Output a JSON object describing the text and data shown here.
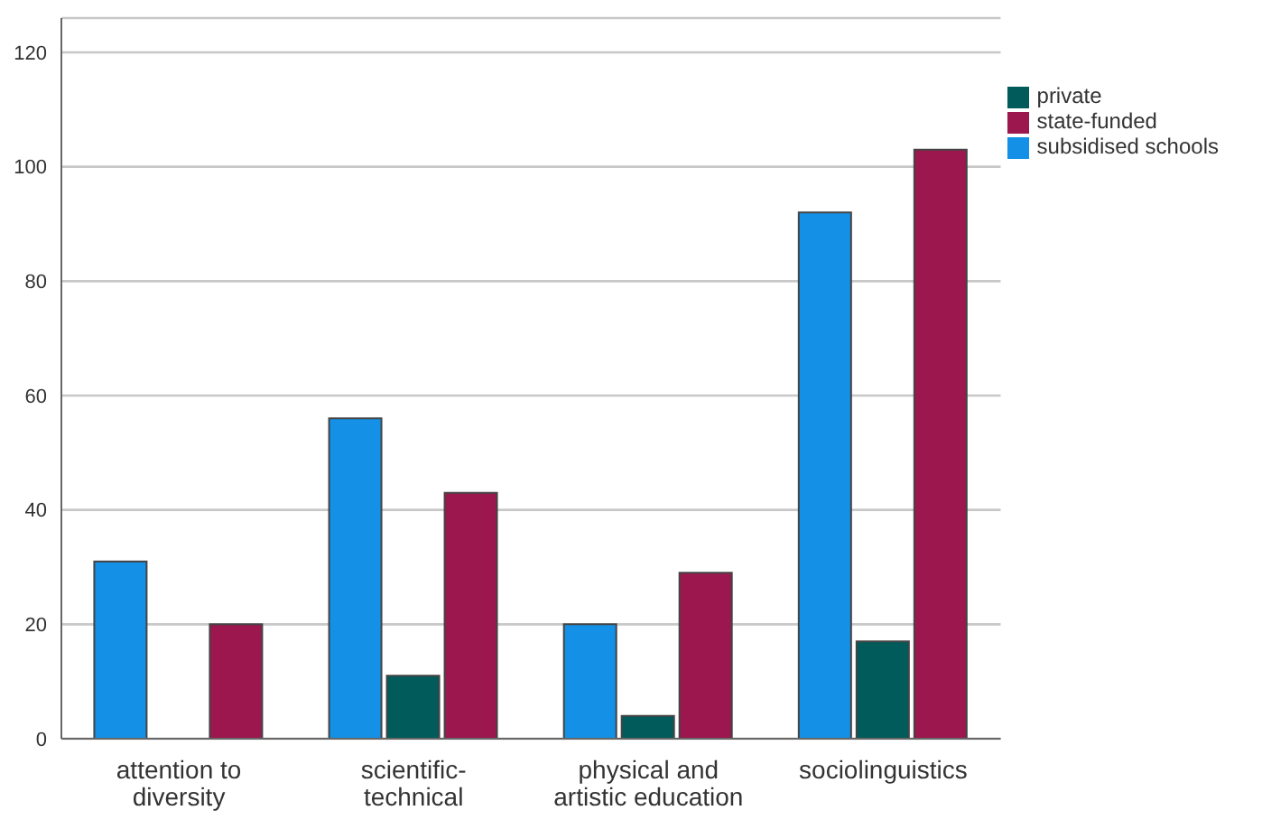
{
  "chart_data": {
    "type": "bar",
    "categories": [
      "attention to diversity",
      "scientific-technical",
      "physical and artistic education",
      "sociolinguistics"
    ],
    "series": [
      {
        "name": "subsidised schools",
        "color": "#1490e6",
        "values": [
          31,
          56,
          20,
          92
        ]
      },
      {
        "name": "private",
        "color": "#025b5b",
        "values": [
          null,
          11,
          4,
          17
        ]
      },
      {
        "name": "state-funded",
        "color": "#9c174e",
        "values": [
          20,
          43,
          29,
          103
        ]
      }
    ],
    "ylim": [
      0,
      126
    ],
    "yticks": [
      0,
      20,
      40,
      60,
      80,
      100,
      120
    ],
    "grid": "y",
    "legend": "top right"
  }
}
